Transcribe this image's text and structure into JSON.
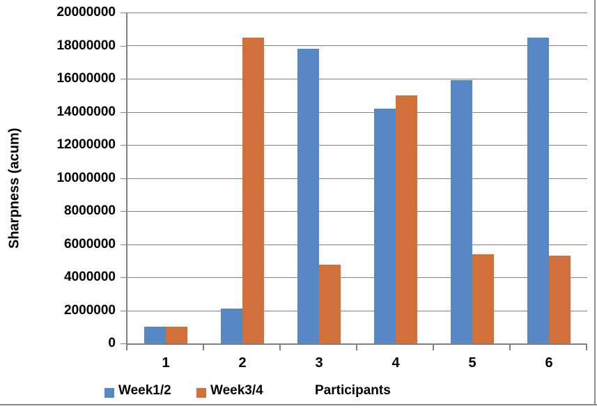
{
  "chart_data": {
    "type": "bar",
    "title": "",
    "xlabel": "Participants",
    "ylabel": "Sharpness (acum)",
    "categories": [
      "1",
      "2",
      "3",
      "4",
      "5",
      "6"
    ],
    "series": [
      {
        "name": "Week1/2",
        "color": "#5588C4",
        "values": [
          1000000,
          2100000,
          17800000,
          14200000,
          15900000,
          18500000
        ]
      },
      {
        "name": "Week3/4",
        "color": "#D2703C",
        "values": [
          1000000,
          18500000,
          4750000,
          15000000,
          5400000,
          5300000
        ]
      }
    ],
    "ylim": [
      0,
      20000000
    ],
    "ytick_step": 2000000,
    "ytick_labels": [
      "0",
      "2000000",
      "4000000",
      "6000000",
      "8000000",
      "10000000",
      "12000000",
      "14000000",
      "16000000",
      "18000000",
      "20000000"
    ],
    "grid": true,
    "legend_position": "bottom"
  },
  "colors": {
    "series1": "#5588C4",
    "series2": "#D2703C",
    "gridline": "#808080",
    "axis": "#808080",
    "frame": "#8A8A8A",
    "text": "#000000",
    "background": "#FFFFFF"
  }
}
